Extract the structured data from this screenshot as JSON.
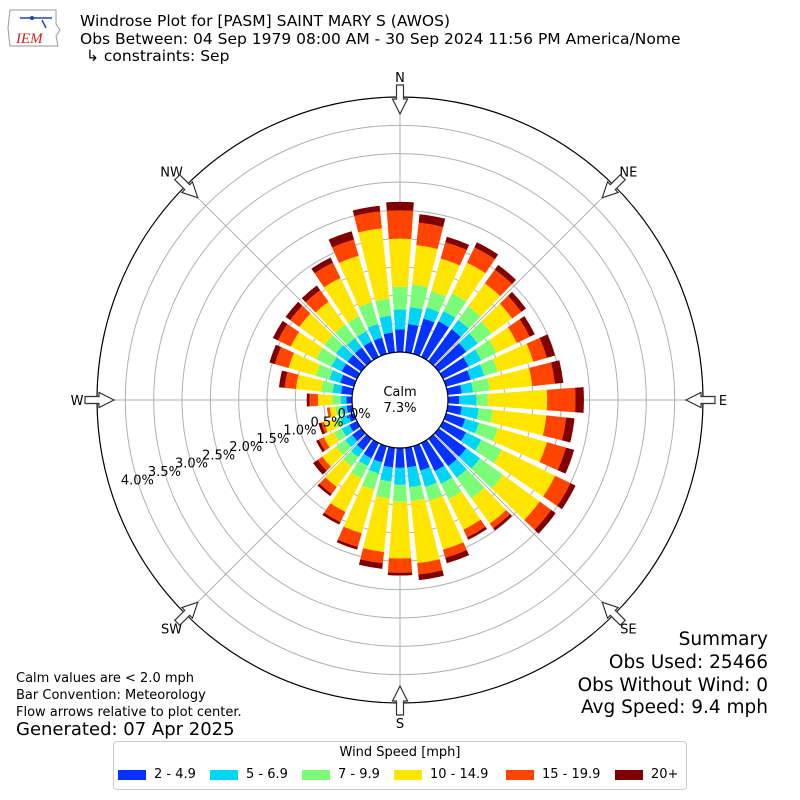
{
  "header": {
    "title": "Windrose Plot for [PASM] SAINT MARY S (AWOS)",
    "obs_between": "Obs Between: 04 Sep 1979 08:00 AM - 30 Sep 2024 11:56 PM America/Nome",
    "constraints": "↳ constraints: Sep"
  },
  "logo": {
    "text": "IEM"
  },
  "notes": {
    "calm_note": "Calm values are < 2.0 mph",
    "bar_convention": "Bar Convention: Meteorology",
    "flow_note": "Flow arrows relative to plot center.",
    "generated": "Generated: 07 Apr 2025"
  },
  "summary": {
    "heading": "Summary",
    "obs_used": "Obs Used: 25466",
    "obs_without_wind": "Obs Without Wind: 0",
    "avg_speed": "Avg Speed: 9.4 mph"
  },
  "legend": {
    "title": "Wind Speed [mph]",
    "items": [
      {
        "label": "2 - 4.9",
        "color": "#0433ff"
      },
      {
        "label": "5 - 6.9",
        "color": "#00d5f5"
      },
      {
        "label": "7 - 9.9",
        "color": "#7afc78"
      },
      {
        "label": "10 - 14.9",
        "color": "#ffe600"
      },
      {
        "label": "15 - 19.9",
        "color": "#ff4400"
      },
      {
        "label": "20+",
        "color": "#800000"
      }
    ]
  },
  "chart_data": {
    "type": "windrose",
    "calm_label": "Calm",
    "calm_percent": "7.3%",
    "compass_labels": [
      "N",
      "NE",
      "E",
      "SE",
      "S",
      "SW",
      "W",
      "NW"
    ],
    "radial_ticks": [
      "0.0%",
      "0.5%",
      "1.0%",
      "1.5%",
      "2.0%",
      "2.5%",
      "3.0%",
      "3.5%",
      "4.0%"
    ],
    "rmax_percent": 4.5,
    "direction_step_deg": 10,
    "directions_deg": [
      0,
      10,
      20,
      30,
      40,
      50,
      60,
      70,
      80,
      90,
      100,
      110,
      120,
      130,
      140,
      150,
      160,
      170,
      180,
      190,
      200,
      210,
      220,
      230,
      240,
      250,
      260,
      270,
      280,
      290,
      300,
      310,
      320,
      330,
      340,
      350
    ],
    "bins": [
      "2 - 4.9",
      "5 - 6.9",
      "7 - 9.9",
      "10 - 14.9",
      "15 - 19.9",
      "20+"
    ],
    "cumulative_percent": [
      [
        0.4,
        0.75,
        1.15,
        2.0,
        2.5,
        2.65
      ],
      [
        0.5,
        0.8,
        1.2,
        1.9,
        2.3,
        2.45
      ],
      [
        0.65,
        0.85,
        1.15,
        1.75,
        2.05,
        2.15
      ],
      [
        0.7,
        0.9,
        1.25,
        1.85,
        2.15,
        2.25
      ],
      [
        0.7,
        0.9,
        1.2,
        1.7,
        2.0,
        2.1
      ],
      [
        0.6,
        0.85,
        1.15,
        1.6,
        1.8,
        1.9
      ],
      [
        0.5,
        0.75,
        1.05,
        1.45,
        1.7,
        1.8
      ],
      [
        0.45,
        0.7,
        0.95,
        1.6,
        1.85,
        2.0
      ],
      [
        0.25,
        0.45,
        0.75,
        1.5,
        1.9,
        2.05
      ],
      [
        0.2,
        0.5,
        0.7,
        1.75,
        2.25,
        2.4
      ],
      [
        0.25,
        0.55,
        0.8,
        1.75,
        2.1,
        2.25
      ],
      [
        0.35,
        0.6,
        0.95,
        1.85,
        2.2,
        2.35
      ],
      [
        0.45,
        0.75,
        1.15,
        2.2,
        2.5,
        2.6
      ],
      [
        0.6,
        0.9,
        1.4,
        2.2,
        2.45,
        2.55
      ],
      [
        0.6,
        0.85,
        1.3,
        1.85,
        1.95,
        2.0
      ],
      [
        0.55,
        0.8,
        1.1,
        1.7,
        1.85,
        1.9
      ],
      [
        0.45,
        0.75,
        1.0,
        1.9,
        2.05,
        2.15
      ],
      [
        0.35,
        0.7,
        0.95,
        2.05,
        2.25,
        2.35
      ],
      [
        0.35,
        0.65,
        0.95,
        1.95,
        2.2,
        2.25
      ],
      [
        0.35,
        0.6,
        0.9,
        1.85,
        2.05,
        2.15
      ],
      [
        0.3,
        0.5,
        0.8,
        1.6,
        1.85,
        1.9
      ],
      [
        0.3,
        0.45,
        0.7,
        1.35,
        1.55,
        1.6
      ],
      [
        0.25,
        0.4,
        0.6,
        1.05,
        1.2,
        1.25
      ],
      [
        0.2,
        0.35,
        0.55,
        0.85,
        0.95,
        1.05
      ],
      [
        0.15,
        0.3,
        0.45,
        0.65,
        0.75,
        0.8
      ],
      [
        0.1,
        0.25,
        0.35,
        0.55,
        0.6,
        0.65
      ],
      [
        0.1,
        0.2,
        0.3,
        0.4,
        0.45,
        0.45
      ],
      [
        0.1,
        0.2,
        0.35,
        0.6,
        0.75,
        0.8
      ],
      [
        0.2,
        0.35,
        0.55,
        1.0,
        1.2,
        1.3
      ],
      [
        0.25,
        0.45,
        0.7,
        1.2,
        1.45,
        1.55
      ],
      [
        0.3,
        0.5,
        0.8,
        1.3,
        1.55,
        1.65
      ],
      [
        0.3,
        0.55,
        0.8,
        1.35,
        1.55,
        1.65
      ],
      [
        0.3,
        0.5,
        0.8,
        1.3,
        1.55,
        1.65
      ],
      [
        0.3,
        0.5,
        0.8,
        1.55,
        1.85,
        1.95
      ],
      [
        0.3,
        0.55,
        0.95,
        1.8,
        2.1,
        2.25
      ],
      [
        0.35,
        0.65,
        0.95,
        2.2,
        2.5,
        2.6
      ]
    ]
  }
}
